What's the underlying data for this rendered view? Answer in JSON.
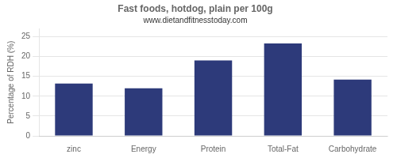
{
  "chart_data": {
    "type": "bar",
    "title": "Fast foods, hotdog, plain per 100g",
    "subtitle": "www.dietandfitnesstoday.com",
    "categories": [
      "zinc",
      "Energy",
      "Protein",
      "Total-Fat",
      "Carbohydrate"
    ],
    "values": [
      13.2,
      12.0,
      19.0,
      23.3,
      14.2
    ],
    "color": "#2d3a7a",
    "ylabel": "Percentage of RDH (%)",
    "ylim": [
      0,
      27
    ],
    "yticks": [
      0,
      5,
      10,
      15,
      20,
      25
    ],
    "grid": true
  }
}
